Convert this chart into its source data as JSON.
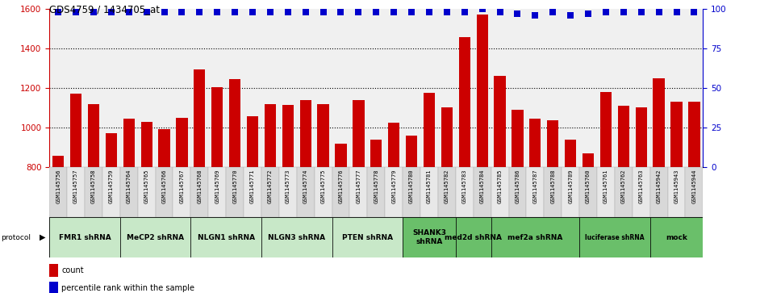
{
  "title": "GDS4759 / 1434705_at",
  "sample_labels": [
    "GSM1145756",
    "GSM1145757",
    "GSM1145758",
    "GSM1145759",
    "GSM1145764",
    "GSM1145765",
    "GSM1145766",
    "GSM1145767",
    "GSM1145768",
    "GSM1145769",
    "GSM1145770",
    "GSM1145771",
    "GSM1145772",
    "GSM1145773",
    "GSM1145774",
    "GSM1145775",
    "GSM1145776",
    "GSM1145777",
    "GSM1145778",
    "GSM1145779",
    "GSM1145780",
    "GSM1145781",
    "GSM1145782",
    "GSM1145783",
    "GSM1145784",
    "GSM1145785",
    "GSM1145786",
    "GSM1145787",
    "GSM1145788",
    "GSM1145789",
    "GSM1145760",
    "GSM1145761",
    "GSM1145762",
    "GSM1145763",
    "GSM1145942",
    "GSM1145943",
    "GSM1145944"
  ],
  "bar_values": [
    855,
    1170,
    1120,
    970,
    1045,
    1030,
    990,
    1050,
    1295,
    1205,
    1245,
    1055,
    1120,
    1115,
    1140,
    1120,
    920,
    1140,
    940,
    1025,
    960,
    1175,
    1100,
    1455,
    1570,
    1260,
    1090,
    1045,
    1035,
    940,
    870,
    1180,
    1110,
    1100,
    1250,
    1130,
    1130
  ],
  "percentile_values": [
    98,
    98,
    98,
    98,
    98,
    98,
    98,
    98,
    98,
    98,
    98,
    98,
    98,
    98,
    98,
    98,
    98,
    98,
    98,
    98,
    98,
    98,
    98,
    98,
    100,
    98,
    97,
    96,
    98,
    96,
    97,
    98,
    98,
    98,
    98,
    98,
    98
  ],
  "protocol_groups": [
    {
      "label": "FMR1 shRNA",
      "start": 0,
      "end": 3,
      "light": true
    },
    {
      "label": "MeCP2 shRNA",
      "start": 4,
      "end": 7,
      "light": true
    },
    {
      "label": "NLGN1 shRNA",
      "start": 8,
      "end": 11,
      "light": true
    },
    {
      "label": "NLGN3 shRNA",
      "start": 12,
      "end": 15,
      "light": true
    },
    {
      "label": "PTEN shRNA",
      "start": 16,
      "end": 19,
      "light": true
    },
    {
      "label": "SHANK3\nshRNA",
      "start": 20,
      "end": 22,
      "light": false
    },
    {
      "label": "med2d shRNA",
      "start": 23,
      "end": 24,
      "light": false
    },
    {
      "label": "mef2a shRNA",
      "start": 25,
      "end": 29,
      "light": false
    },
    {
      "label": "luciferase shRNA",
      "start": 30,
      "end": 33,
      "light": false
    },
    {
      "label": "mock",
      "start": 34,
      "end": 36,
      "light": false
    }
  ],
  "light_green": "#c8e8c8",
  "dark_green": "#6abf6a",
  "ylim_left": [
    800,
    1600
  ],
  "ylim_right": [
    0,
    100
  ],
  "yticks_left": [
    800,
    1000,
    1200,
    1400,
    1600
  ],
  "yticks_right": [
    0,
    25,
    50,
    75,
    100
  ],
  "bar_color": "#cc0000",
  "dot_color": "#0000cc",
  "bg_color": "#f0f0f0",
  "grid_color": "#555555"
}
